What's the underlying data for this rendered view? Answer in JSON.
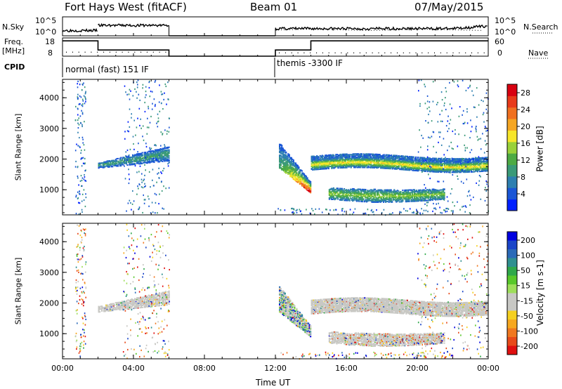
{
  "header": {
    "station": "Fort Hays West (fitACF)",
    "beam": "Beam 01",
    "date": "07/May/2015"
  },
  "panels": {
    "nsky": {
      "label": "N.Sky",
      "ticks": [
        "10^5",
        "10^0"
      ],
      "right_label": "N.Search",
      "right_ticks": [
        "10^5",
        "10^0"
      ]
    },
    "freq": {
      "label_line1": "Freq.",
      "label_line2": "[MHz]",
      "ticks": [
        "18",
        "8"
      ],
      "right_label": "Nave",
      "right_ticks": [
        "60",
        "0"
      ]
    },
    "cpid": {
      "label": "CPID",
      "segments": [
        "normal (fast) 151 IF",
        "themis -3300 IF"
      ]
    }
  },
  "chart_data": [
    {
      "type": "heatmap",
      "title": "",
      "xlabel": "Time UT",
      "ylabel": "Slant Range [km]",
      "x_ticks": [
        "00:00",
        "04:00",
        "08:00",
        "12:00",
        "16:00",
        "20:00",
        "00:00"
      ],
      "xlim": [
        0,
        24
      ],
      "ylim": [
        180,
        4600
      ],
      "y_ticks": [
        1000,
        2000,
        3000,
        4000
      ],
      "colorbar": {
        "label": "Power [dB]",
        "ticks": [
          "4",
          "8",
          "12",
          "16",
          "20",
          "24",
          "28"
        ],
        "range": [
          0,
          30
        ]
      },
      "regions": [
        {
          "t": [
            2.0,
            6.0
          ],
          "range_km": [
            1750,
            2350
          ],
          "value": "low-moderate",
          "note": "scatter band rising slightly"
        },
        {
          "t": [
            12.2,
            14.0
          ],
          "range_km": [
            800,
            2500
          ],
          "value": "high",
          "note": "descending arc, strongest near 1000-1200 km"
        },
        {
          "t": [
            14.0,
            24.0
          ],
          "range_km": [
            1650,
            2300
          ],
          "value": "moderate",
          "note": "band near 1900 km"
        },
        {
          "t": [
            15.0,
            21.5
          ],
          "range_km": [
            600,
            1150
          ],
          "value": "moderate",
          "note": "lower band near 850 km"
        }
      ]
    },
    {
      "type": "heatmap",
      "title": "",
      "xlabel": "Time UT",
      "ylabel": "Slant Range [km]",
      "x_ticks": [
        "00:00",
        "04:00",
        "08:00",
        "12:00",
        "16:00",
        "20:00",
        "00:00"
      ],
      "xlim": [
        0,
        24
      ],
      "ylim": [
        180,
        4600
      ],
      "y_ticks": [
        1000,
        2000,
        3000,
        4000
      ],
      "colorbar": {
        "label": "Velocity [m s-1]",
        "ticks": [
          "200",
          "100",
          "50",
          "15",
          "-15",
          "-50",
          "-100",
          "-200"
        ]
      },
      "regions": [
        {
          "t": [
            2.0,
            6.0
          ],
          "range_km": [
            1750,
            2350
          ],
          "value": "near zero (ground scatter)"
        },
        {
          "t": [
            12.2,
            14.0
          ],
          "range_km": [
            800,
            2500
          ],
          "value": "near zero with positive edge"
        },
        {
          "t": [
            14.0,
            24.0
          ],
          "range_km": [
            1650,
            2300
          ],
          "value": "near zero (ground scatter)"
        },
        {
          "t": [
            15.0,
            21.5
          ],
          "range_km": [
            600,
            1150
          ],
          "value": "near zero (ground scatter)"
        }
      ]
    }
  ],
  "colors": {
    "power": [
      "#0020ff",
      "#1a56d6",
      "#2d7fb0",
      "#3a9a78",
      "#4daa44",
      "#9ad13a",
      "#f7e62a",
      "#f5a623",
      "#f07020",
      "#e83a1a",
      "#d80010"
    ],
    "velocity_pos": [
      "#0000e0",
      "#1a45c8",
      "#2a6ab8",
      "#2f9090",
      "#2fa84a",
      "#59c82a",
      "#9ede5a"
    ],
    "velocity_zero": "#c8c8c4",
    "velocity_neg": [
      "#f5d020",
      "#f7a820",
      "#f07820",
      "#e84a1a",
      "#e01010"
    ]
  }
}
